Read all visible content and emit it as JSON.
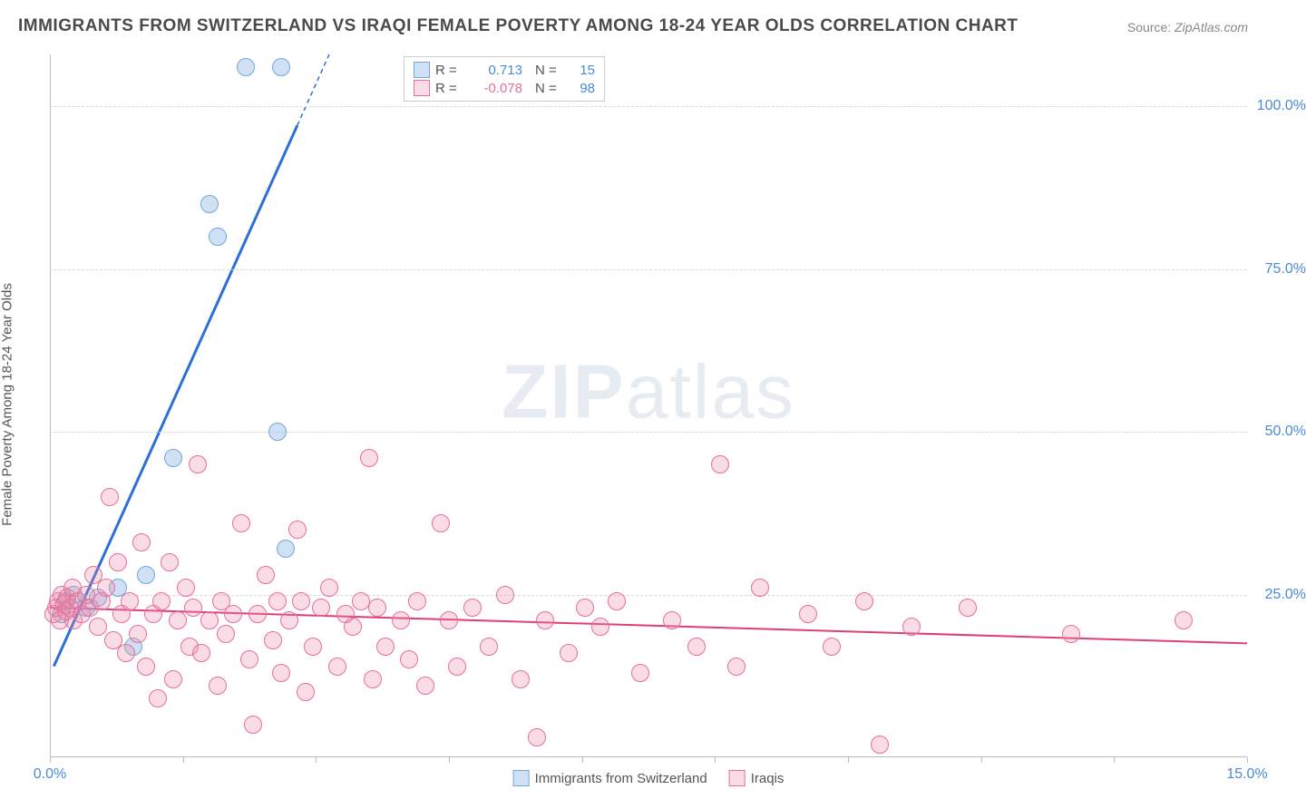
{
  "title": "IMMIGRANTS FROM SWITZERLAND VS IRAQI FEMALE POVERTY AMONG 18-24 YEAR OLDS CORRELATION CHART",
  "source_label": "Source:",
  "source_value": "ZipAtlas.com",
  "y_axis_label": "Female Poverty Among 18-24 Year Olds",
  "watermark_a": "ZIP",
  "watermark_b": "atlas",
  "chart": {
    "type": "scatter",
    "xlim": [
      0,
      15
    ],
    "ylim": [
      0,
      108
    ],
    "y_ticks": [
      25,
      50,
      75,
      100
    ],
    "y_tick_labels": [
      "25.0%",
      "50.0%",
      "75.0%",
      "100.0%"
    ],
    "x_ticks": [
      0,
      1.67,
      3.33,
      5,
      6.67,
      8.33,
      10,
      11.67,
      13.33,
      15
    ],
    "x_tick_labels_left": "0.0%",
    "x_tick_labels_right": "15.0%",
    "background_color": "#ffffff",
    "grid_color": "#d8d8d8",
    "series": [
      {
        "name": "Immigrants from Switzerland",
        "color_fill": "rgba(120,170,225,0.35)",
        "color_stroke": "#6fa8dc",
        "r_value": "0.713",
        "r_color": "#4a8ad8",
        "n_value": "15",
        "marker_radius": 10,
        "trend": {
          "x1": 0.05,
          "y1": 14,
          "x2": 3.5,
          "y2": 108,
          "x_dash_from": 3.1,
          "color": "#2d6fd6",
          "width": 3
        },
        "points": [
          [
            0.15,
            22
          ],
          [
            0.2,
            24
          ],
          [
            0.3,
            25
          ],
          [
            0.45,
            23
          ],
          [
            0.6,
            24.5
          ],
          [
            0.85,
            26
          ],
          [
            1.05,
            17
          ],
          [
            1.2,
            28
          ],
          [
            1.55,
            46
          ],
          [
            2.0,
            85
          ],
          [
            2.1,
            80
          ],
          [
            2.45,
            106
          ],
          [
            2.9,
            106
          ],
          [
            2.95,
            32
          ],
          [
            2.85,
            50
          ]
        ]
      },
      {
        "name": "Iraqis",
        "color_fill": "rgba(240,140,170,0.30)",
        "color_stroke": "#e66f9a",
        "r_value": "-0.078",
        "r_color": "#e66f9a",
        "n_value": "98",
        "marker_radius": 10,
        "trend": {
          "x1": 0,
          "y1": 23,
          "x2": 15,
          "y2": 17.5,
          "color": "#e03d7a",
          "width": 2
        },
        "points": [
          [
            0.05,
            22
          ],
          [
            0.08,
            23
          ],
          [
            0.1,
            24
          ],
          [
            0.12,
            21
          ],
          [
            0.15,
            25
          ],
          [
            0.18,
            23.5
          ],
          [
            0.2,
            22.5
          ],
          [
            0.22,
            24.5
          ],
          [
            0.25,
            23
          ],
          [
            0.28,
            26
          ],
          [
            0.3,
            21
          ],
          [
            0.35,
            24
          ],
          [
            0.4,
            22
          ],
          [
            0.45,
            25
          ],
          [
            0.5,
            23
          ],
          [
            0.55,
            28
          ],
          [
            0.6,
            20
          ],
          [
            0.65,
            24
          ],
          [
            0.7,
            26
          ],
          [
            0.75,
            40
          ],
          [
            0.8,
            18
          ],
          [
            0.85,
            30
          ],
          [
            0.9,
            22
          ],
          [
            0.95,
            16
          ],
          [
            1.0,
            24
          ],
          [
            1.1,
            19
          ],
          [
            1.15,
            33
          ],
          [
            1.2,
            14
          ],
          [
            1.3,
            22
          ],
          [
            1.35,
            9
          ],
          [
            1.4,
            24
          ],
          [
            1.5,
            30
          ],
          [
            1.55,
            12
          ],
          [
            1.6,
            21
          ],
          [
            1.7,
            26
          ],
          [
            1.75,
            17
          ],
          [
            1.8,
            23
          ],
          [
            1.85,
            45
          ],
          [
            1.9,
            16
          ],
          [
            2.0,
            21
          ],
          [
            2.1,
            11
          ],
          [
            2.15,
            24
          ],
          [
            2.2,
            19
          ],
          [
            2.3,
            22
          ],
          [
            2.4,
            36
          ],
          [
            2.5,
            15
          ],
          [
            2.55,
            5
          ],
          [
            2.6,
            22
          ],
          [
            2.7,
            28
          ],
          [
            2.8,
            18
          ],
          [
            2.85,
            24
          ],
          [
            2.9,
            13
          ],
          [
            3.0,
            21
          ],
          [
            3.1,
            35
          ],
          [
            3.15,
            24
          ],
          [
            3.2,
            10
          ],
          [
            3.3,
            17
          ],
          [
            3.4,
            23
          ],
          [
            3.5,
            26
          ],
          [
            3.6,
            14
          ],
          [
            3.7,
            22
          ],
          [
            3.8,
            20
          ],
          [
            3.9,
            24
          ],
          [
            4.0,
            46
          ],
          [
            4.05,
            12
          ],
          [
            4.1,
            23
          ],
          [
            4.2,
            17
          ],
          [
            4.4,
            21
          ],
          [
            4.5,
            15
          ],
          [
            4.6,
            24
          ],
          [
            4.7,
            11
          ],
          [
            4.9,
            36
          ],
          [
            5.0,
            21
          ],
          [
            5.1,
            14
          ],
          [
            5.3,
            23
          ],
          [
            5.5,
            17
          ],
          [
            5.7,
            25
          ],
          [
            5.9,
            12
          ],
          [
            6.1,
            3
          ],
          [
            6.2,
            21
          ],
          [
            6.5,
            16
          ],
          [
            6.7,
            23
          ],
          [
            6.9,
            20
          ],
          [
            7.1,
            24
          ],
          [
            7.4,
            13
          ],
          [
            7.8,
            21
          ],
          [
            8.1,
            17
          ],
          [
            8.4,
            45
          ],
          [
            8.6,
            14
          ],
          [
            8.9,
            26
          ],
          [
            9.5,
            22
          ],
          [
            9.8,
            17
          ],
          [
            10.2,
            24
          ],
          [
            10.4,
            2
          ],
          [
            10.8,
            20
          ],
          [
            11.5,
            23
          ],
          [
            12.8,
            19
          ],
          [
            14.2,
            21
          ]
        ]
      }
    ]
  },
  "legend_top_r_label": "R =",
  "legend_top_n_label": "N ="
}
